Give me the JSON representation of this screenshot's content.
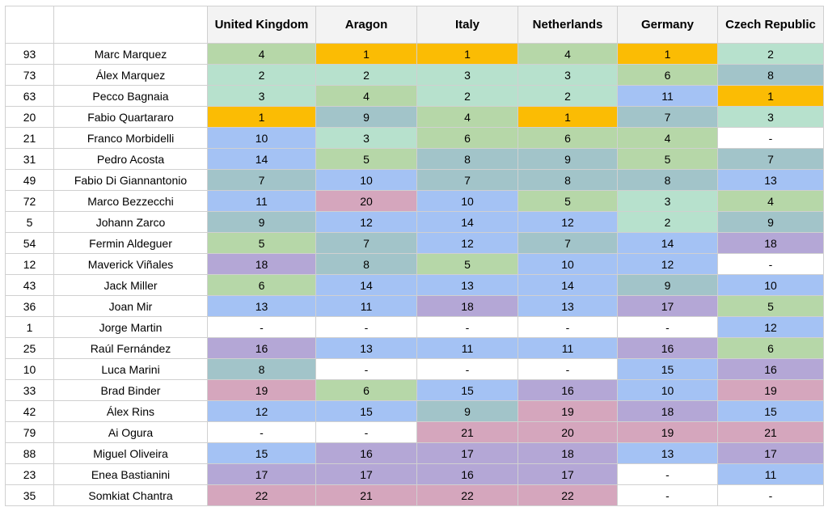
{
  "table": {
    "columns": [
      "United Kingdom",
      "Aragon",
      "Italy",
      "Netherlands",
      "Germany",
      "Czech Republic"
    ],
    "rows": [
      {
        "number": 93,
        "rider": "Marc Marquez",
        "results": [
          4,
          1,
          1,
          4,
          1,
          2
        ]
      },
      {
        "number": 73,
        "rider": "Álex Marquez",
        "results": [
          2,
          2,
          3,
          3,
          6,
          8
        ]
      },
      {
        "number": 63,
        "rider": "Pecco Bagnaia",
        "results": [
          3,
          4,
          2,
          2,
          11,
          1
        ]
      },
      {
        "number": 20,
        "rider": "Fabio Quartararo",
        "results": [
          1,
          9,
          4,
          1,
          7,
          3
        ]
      },
      {
        "number": 21,
        "rider": "Franco Morbidelli",
        "results": [
          10,
          3,
          6,
          6,
          4,
          "-"
        ]
      },
      {
        "number": 31,
        "rider": "Pedro Acosta",
        "results": [
          14,
          5,
          8,
          9,
          5,
          7
        ]
      },
      {
        "number": 49,
        "rider": "Fabio Di Giannantonio",
        "results": [
          7,
          10,
          7,
          8,
          8,
          13
        ]
      },
      {
        "number": 72,
        "rider": "Marco Bezzecchi",
        "results": [
          11,
          20,
          10,
          5,
          3,
          4
        ]
      },
      {
        "number": 5,
        "rider": "Johann Zarco",
        "results": [
          9,
          12,
          14,
          12,
          2,
          9
        ]
      },
      {
        "number": 54,
        "rider": "Fermin Aldeguer",
        "results": [
          5,
          7,
          12,
          7,
          14,
          18
        ]
      },
      {
        "number": 12,
        "rider": "Maverick Viñales",
        "results": [
          18,
          8,
          5,
          10,
          12,
          "-"
        ]
      },
      {
        "number": 43,
        "rider": "Jack Miller",
        "results": [
          6,
          14,
          13,
          14,
          9,
          10
        ]
      },
      {
        "number": 36,
        "rider": "Joan Mir",
        "results": [
          13,
          11,
          18,
          13,
          17,
          5
        ]
      },
      {
        "number": 1,
        "rider": "Jorge Martin",
        "results": [
          "-",
          "-",
          "-",
          "-",
          "-",
          12
        ]
      },
      {
        "number": 25,
        "rider": "Raúl Fernández",
        "results": [
          16,
          13,
          11,
          11,
          16,
          6
        ]
      },
      {
        "number": 10,
        "rider": "Luca Marini",
        "results": [
          8,
          "-",
          "-",
          "-",
          15,
          16
        ]
      },
      {
        "number": 33,
        "rider": "Brad Binder",
        "results": [
          19,
          6,
          15,
          16,
          10,
          19
        ]
      },
      {
        "number": 42,
        "rider": "Álex Rins",
        "results": [
          12,
          15,
          9,
          19,
          18,
          15
        ]
      },
      {
        "number": 79,
        "rider": "Ai Ogura",
        "results": [
          "-",
          "-",
          21,
          20,
          19,
          21
        ]
      },
      {
        "number": 88,
        "rider": "Miguel Oliveira",
        "results": [
          15,
          16,
          17,
          18,
          13,
          17
        ]
      },
      {
        "number": 23,
        "rider": "Enea Bastianini",
        "results": [
          17,
          17,
          16,
          17,
          "-",
          11
        ]
      },
      {
        "number": 35,
        "rider": "Somkiat Chantra",
        "results": [
          22,
          21,
          22,
          22,
          "-",
          "-"
        ]
      }
    ]
  }
}
